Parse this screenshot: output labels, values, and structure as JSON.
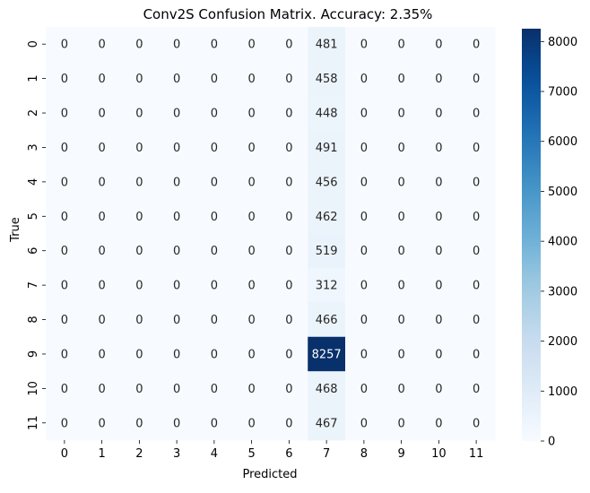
{
  "chart_data": {
    "type": "heatmap",
    "title": "Conv2S Confusion Matrix. Accuracy: 2.35%",
    "xlabel": "Predicted",
    "ylabel": "True",
    "x_categories": [
      "0",
      "1",
      "2",
      "3",
      "4",
      "5",
      "6",
      "7",
      "8",
      "9",
      "10",
      "11"
    ],
    "y_categories": [
      "0",
      "1",
      "2",
      "3",
      "4",
      "5",
      "6",
      "7",
      "8",
      "9",
      "10",
      "11"
    ],
    "matrix": [
      [
        0,
        0,
        0,
        0,
        0,
        0,
        0,
        481,
        0,
        0,
        0,
        0
      ],
      [
        0,
        0,
        0,
        0,
        0,
        0,
        0,
        458,
        0,
        0,
        0,
        0
      ],
      [
        0,
        0,
        0,
        0,
        0,
        0,
        0,
        448,
        0,
        0,
        0,
        0
      ],
      [
        0,
        0,
        0,
        0,
        0,
        0,
        0,
        491,
        0,
        0,
        0,
        0
      ],
      [
        0,
        0,
        0,
        0,
        0,
        0,
        0,
        456,
        0,
        0,
        0,
        0
      ],
      [
        0,
        0,
        0,
        0,
        0,
        0,
        0,
        462,
        0,
        0,
        0,
        0
      ],
      [
        0,
        0,
        0,
        0,
        0,
        0,
        0,
        519,
        0,
        0,
        0,
        0
      ],
      [
        0,
        0,
        0,
        0,
        0,
        0,
        0,
        312,
        0,
        0,
        0,
        0
      ],
      [
        0,
        0,
        0,
        0,
        0,
        0,
        0,
        466,
        0,
        0,
        0,
        0
      ],
      [
        0,
        0,
        0,
        0,
        0,
        0,
        0,
        8257,
        0,
        0,
        0,
        0
      ],
      [
        0,
        0,
        0,
        0,
        0,
        0,
        0,
        468,
        0,
        0,
        0,
        0
      ],
      [
        0,
        0,
        0,
        0,
        0,
        0,
        0,
        467,
        0,
        0,
        0,
        0
      ]
    ],
    "colormap": "Blues",
    "color_min": 0,
    "color_max": 8257,
    "colorbar_ticks": [
      0,
      1000,
      2000,
      3000,
      4000,
      5000,
      6000,
      7000,
      8000
    ],
    "colorbar_tick_labels": [
      "0",
      "1000",
      "2000",
      "3000",
      "4000",
      "5000",
      "6000",
      "7000",
      "8000"
    ],
    "grid": false,
    "legend": "colorbar-right"
  }
}
